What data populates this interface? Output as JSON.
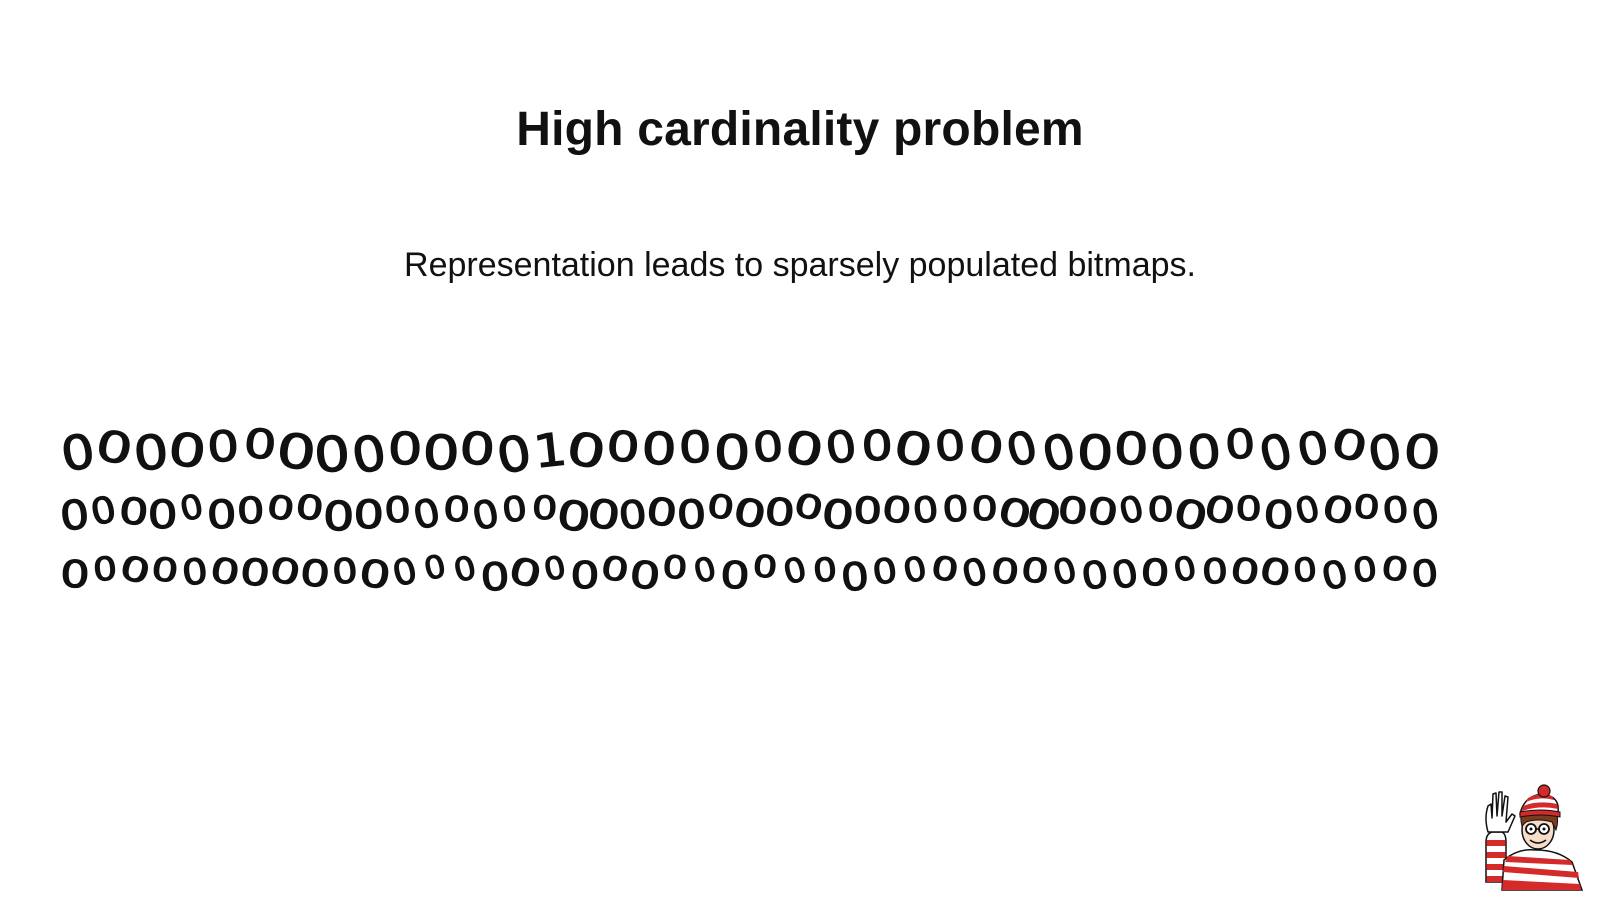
{
  "slide": {
    "title": "High cardinality problem",
    "subtitle": "Representation leads to sparsely populated bitmaps."
  },
  "bitmap": {
    "rows": [
      "00000000000001000000000000000000000000",
      "00000000000000000000000000000000000000000000000",
      "0000000000000000000000000000000000000000000000"
    ]
  },
  "colors": {
    "text": "#111111",
    "background": "#ffffff",
    "mascot_red": "#d42a2a",
    "mascot_white": "#ffffff"
  },
  "icons": {
    "corner_character": "waving-character-icon"
  }
}
